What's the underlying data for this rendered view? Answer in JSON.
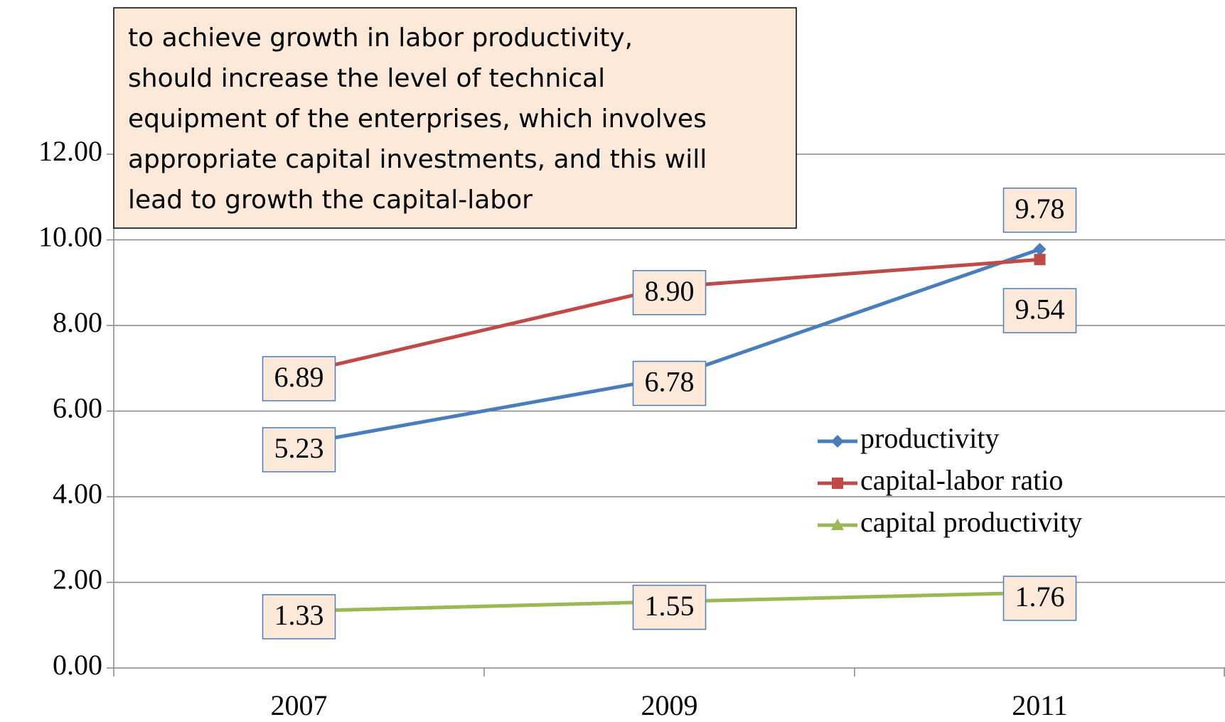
{
  "chart_data": {
    "type": "line",
    "annotation": [
      "to achieve growth in labor productivity,",
      "should increase the level of technical",
      "equipment of the enterprises, which involves",
      "appropriate capital investments, and this will",
      "lead to growth the capital-labor"
    ],
    "categories": [
      "2007",
      "2009",
      "2011"
    ],
    "series": [
      {
        "name": "productivity",
        "color": "#4a7ebb",
        "marker": "diamond",
        "values": [
          5.23,
          6.78,
          9.78
        ],
        "value_labels": [
          "5.23",
          "6.78",
          "9.78"
        ]
      },
      {
        "name": "capital-labor ratio",
        "color": "#be4b48",
        "marker": "square",
        "values": [
          6.89,
          8.9,
          9.54
        ],
        "value_labels": [
          "6.89",
          "8.90",
          "9.54"
        ]
      },
      {
        "name": "capital productivity",
        "color": "#98b954",
        "marker": "triangle",
        "values": [
          1.33,
          1.55,
          1.76
        ],
        "value_labels": [
          "1.33",
          "1.55",
          "1.76"
        ]
      }
    ],
    "ylim": [
      0,
      12
    ],
    "yticks": [
      {
        "value": 0,
        "label": "0.00"
      },
      {
        "value": 2,
        "label": "2.00"
      },
      {
        "value": 4,
        "label": "4.00"
      },
      {
        "value": 6,
        "label": "6.00"
      },
      {
        "value": 8,
        "label": "8.00"
      },
      {
        "value": 10,
        "label": "10.00"
      },
      {
        "value": 12,
        "label": "12.00"
      }
    ],
    "grid": true,
    "legend": "right"
  }
}
